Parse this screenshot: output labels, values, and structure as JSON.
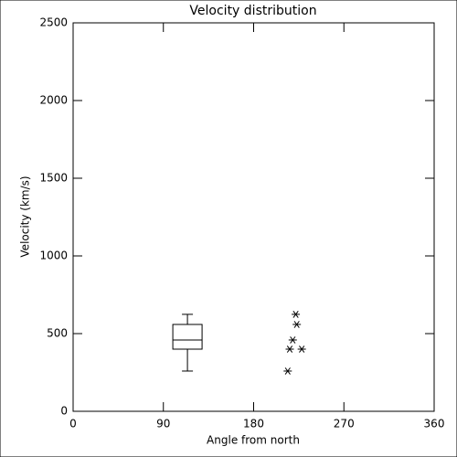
{
  "chart_data": {
    "type": "box",
    "title": "Velocity distribution",
    "xlabel": "Angle from north",
    "ylabel": "Velocity (km/s)",
    "xlim": [
      0,
      360
    ],
    "xticks": [
      0,
      90,
      180,
      270,
      360
    ],
    "ylim": [
      0,
      2500
    ],
    "yticks": [
      0,
      500,
      1000,
      1500,
      2000,
      2500
    ],
    "color": "#000000",
    "series": [
      {
        "type": "box",
        "x": 114,
        "min": 259,
        "q1": 400,
        "median": 459,
        "q3": 559,
        "max": 624
      },
      {
        "type": "scatter",
        "x": [
          222,
          223,
          219,
          216,
          228,
          214
        ],
        "y": [
          624,
          559,
          459,
          400,
          400,
          259
        ]
      }
    ]
  }
}
